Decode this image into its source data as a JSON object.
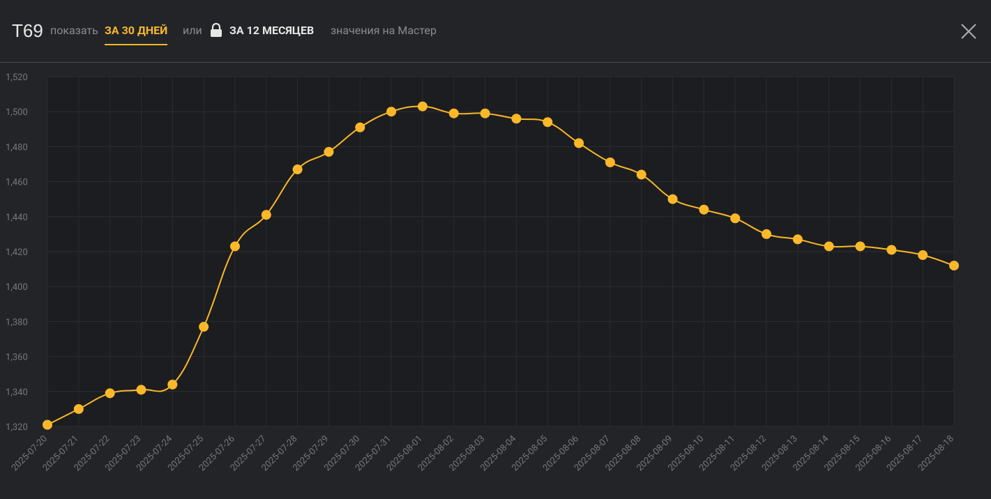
{
  "header": {
    "title": "T69",
    "show_label": "показать",
    "tab_30": "ЗА 30 ДНЕЙ",
    "or_label": "или",
    "tab_12": "ЗА 12 МЕСЯЦЕВ",
    "suffix": "значения на Мастер"
  },
  "chart_data": {
    "type": "line",
    "categories": [
      "2025-07-20",
      "2025-07-21",
      "2025-07-22",
      "2025-07-23",
      "2025-07-24",
      "2025-07-25",
      "2025-07-26",
      "2025-07-27",
      "2025-07-28",
      "2025-07-29",
      "2025-07-30",
      "2025-07-31",
      "2025-08-01",
      "2025-08-02",
      "2025-08-03",
      "2025-08-04",
      "2025-08-05",
      "2025-08-06",
      "2025-08-07",
      "2025-08-08",
      "2025-08-09",
      "2025-08-10",
      "2025-08-11",
      "2025-08-12",
      "2025-08-13",
      "2025-08-14",
      "2025-08-15",
      "2025-08-16",
      "2025-08-17",
      "2025-08-18"
    ],
    "values": [
      1321,
      1330,
      1339,
      1341,
      1344,
      1377,
      1423,
      1441,
      1467,
      1477,
      1491,
      1500,
      1503,
      1499,
      1499,
      1496,
      1494,
      1482,
      1471,
      1464,
      1450,
      1444,
      1439,
      1430,
      1427,
      1423,
      1423,
      1421,
      1418,
      1412
    ],
    "color": "#fbb829",
    "ylim": [
      1320,
      1520
    ],
    "yticks": [
      {
        "value": 1320,
        "label": "1,320"
      },
      {
        "value": 1340,
        "label": "1,340"
      },
      {
        "value": 1360,
        "label": "1,360"
      },
      {
        "value": 1380,
        "label": "1,380"
      },
      {
        "value": 1400,
        "label": "1,400"
      },
      {
        "value": 1420,
        "label": "1,420"
      },
      {
        "value": 1440,
        "label": "1,440"
      },
      {
        "value": 1460,
        "label": "1,460"
      },
      {
        "value": 1480,
        "label": "1,480"
      },
      {
        "value": 1500,
        "label": "1,500"
      },
      {
        "value": 1520,
        "label": "1,520"
      }
    ],
    "grid": true
  }
}
